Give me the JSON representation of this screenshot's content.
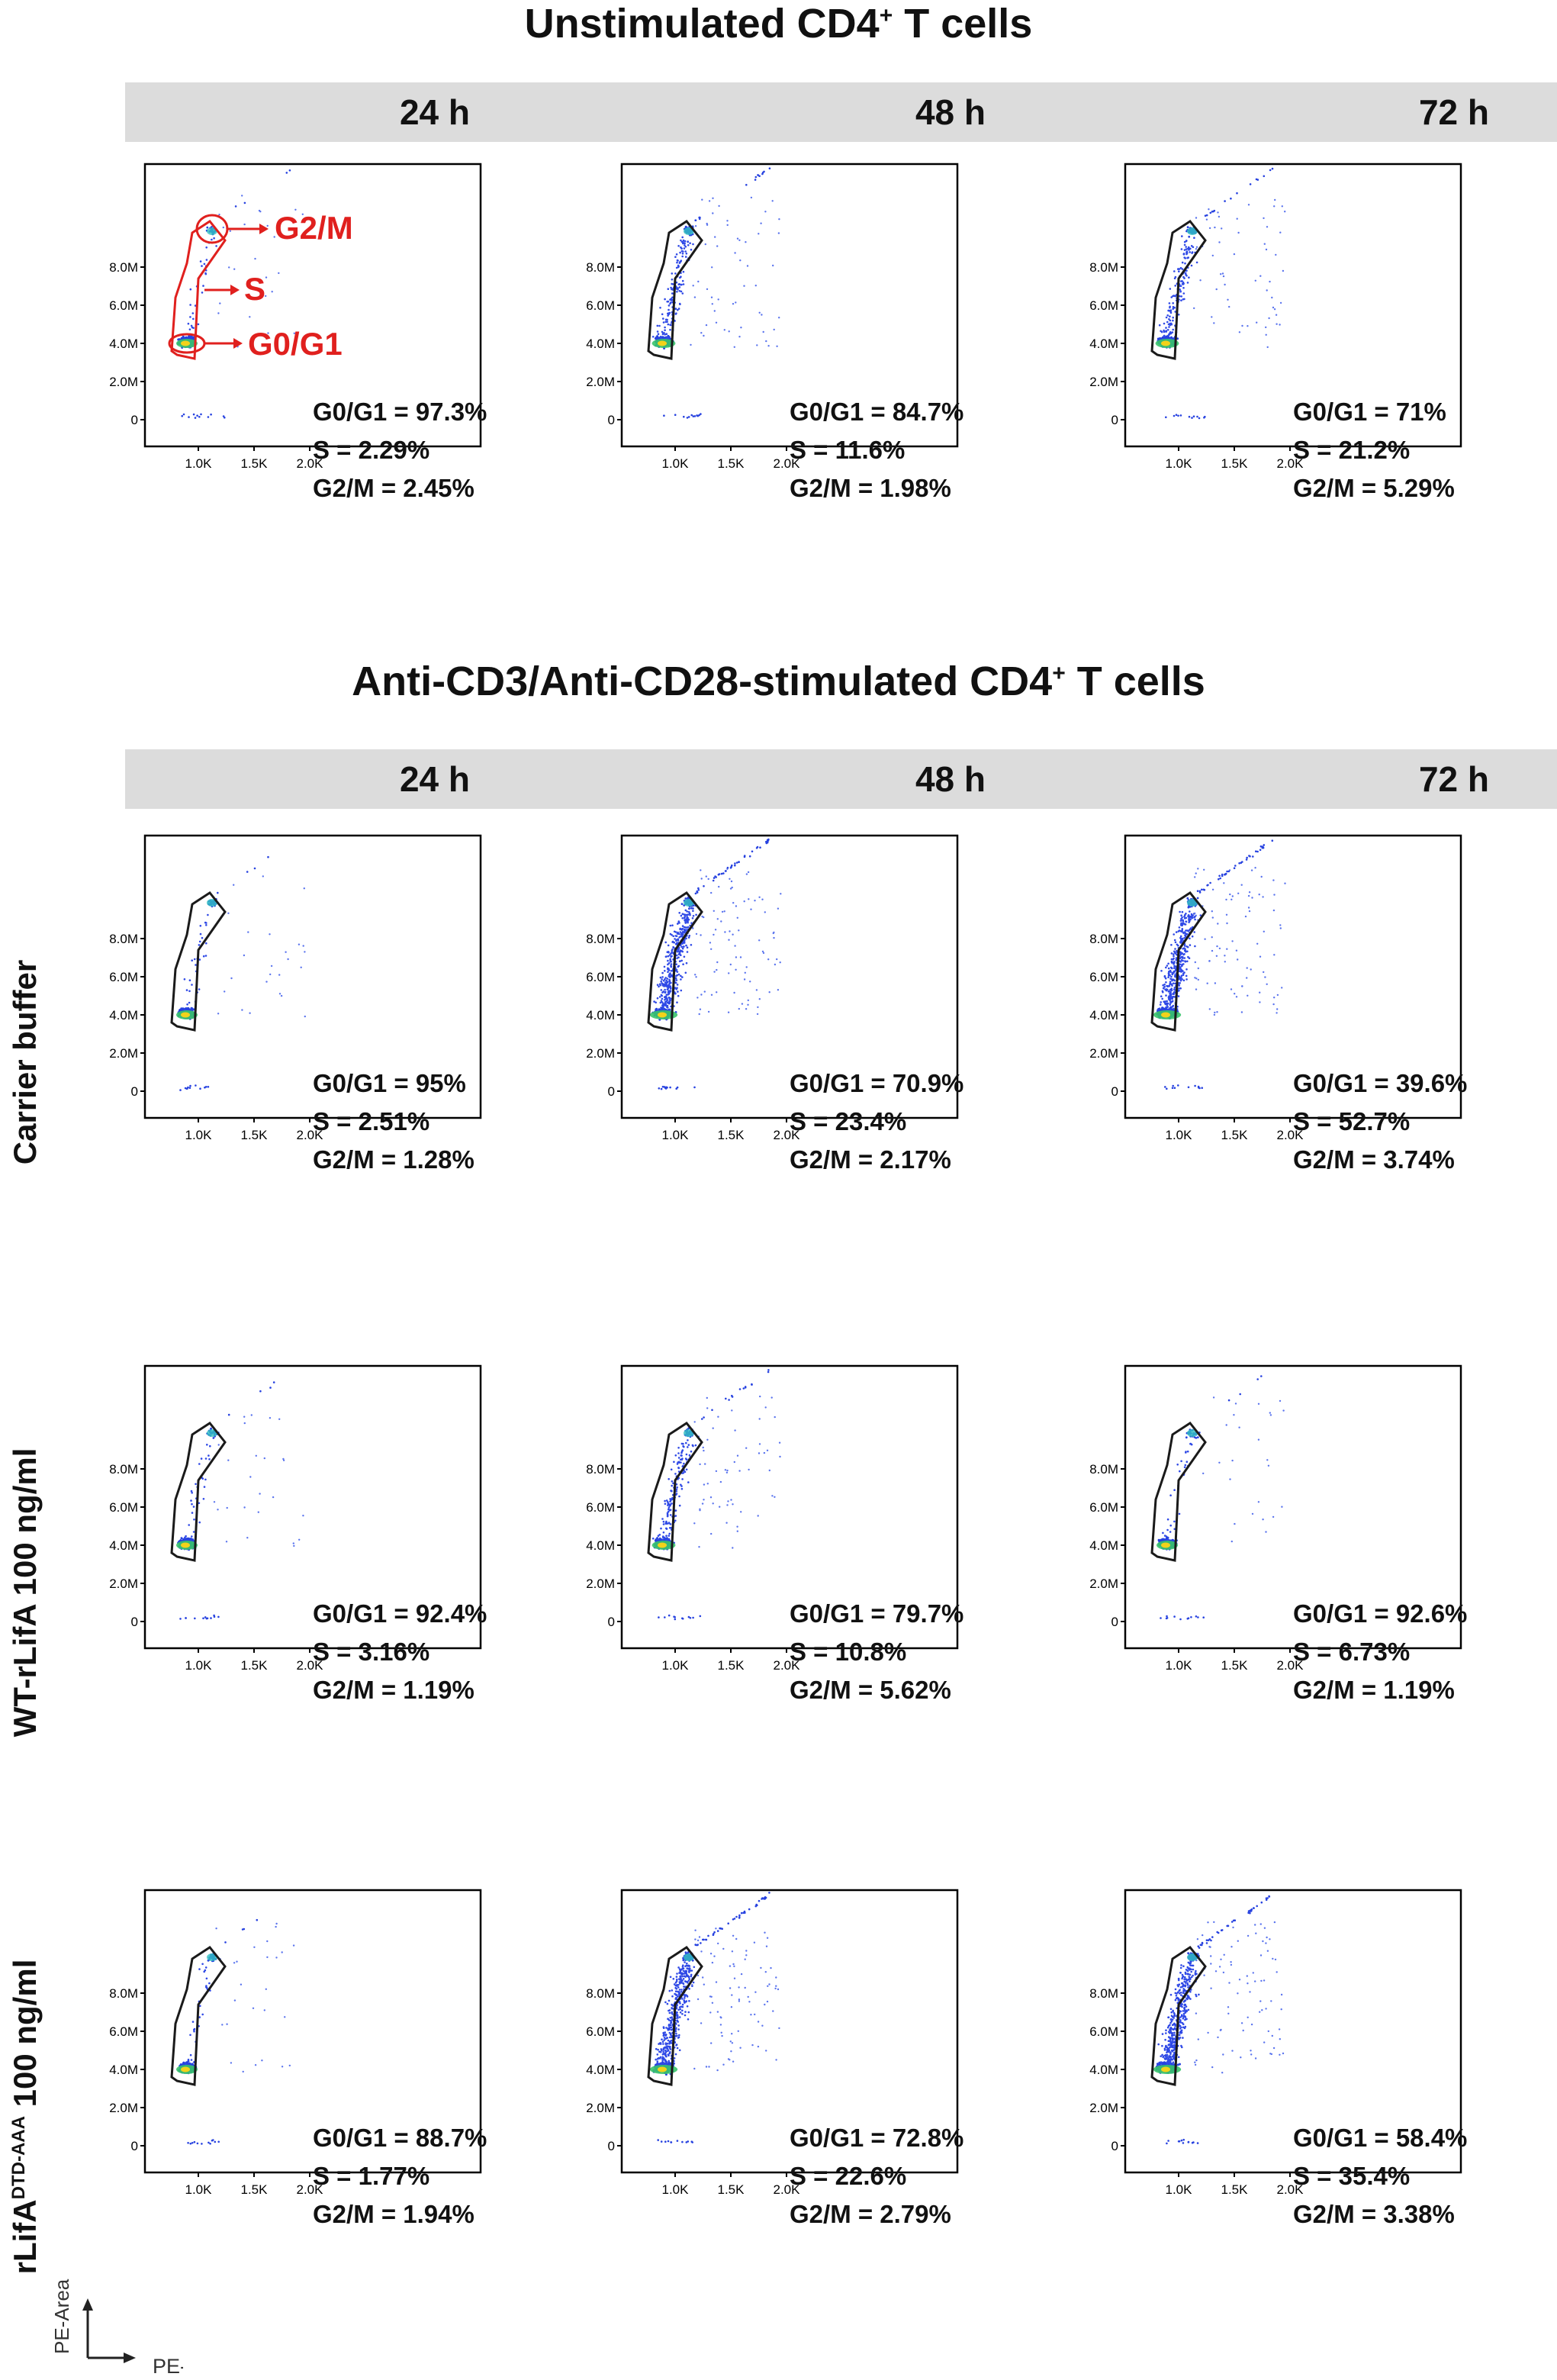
{
  "unstimulated": {
    "title": "Unstimulated CD4",
    "title_sup": "+",
    "title_suffix": " T cells",
    "time_labels": [
      "24 h",
      "48 h",
      "72 h"
    ],
    "annotations": {
      "g2m": "G2/M",
      "s": "S",
      "g0g1": "G0/G1"
    },
    "panels": [
      {
        "time": "24 h",
        "g0g1": "G0/G1 = 97.3%",
        "s": "S = 2.29%",
        "g2m": "G2/M = 2.45%"
      },
      {
        "time": "48 h",
        "g0g1": "G0/G1 = 84.7%",
        "s": "S = 11.6%",
        "g2m": "G2/M = 1.98%"
      },
      {
        "time": "72 h",
        "g0g1": "G0/G1 = 71%",
        "s": "S = 21.2%",
        "g2m": "G2/M = 5.29%"
      }
    ]
  },
  "stimulated": {
    "title": "Anti-CD3/Anti-CD28-stimulated CD4",
    "title_sup": "+",
    "title_suffix": " T cells",
    "time_labels": [
      "24 h",
      "48 h",
      "72 h"
    ],
    "rows": [
      {
        "label": "Carrier buffer",
        "panels": [
          {
            "g0g1": "G0/G1 = 95%",
            "s": "S = 2.51%",
            "g2m": "G2/M = 1.28%"
          },
          {
            "g0g1": "G0/G1 = 70.9%",
            "s": "S = 23.4%",
            "g2m": "G2/M = 2.17%"
          },
          {
            "g0g1": "G0/G1 = 39.6%",
            "s": "S = 52.7%",
            "g2m": "G2/M = 3.74%"
          }
        ]
      },
      {
        "label": "WT-rLifA 100 ng/ml",
        "panels": [
          {
            "g0g1": "G0/G1 = 92.4%",
            "s": "S = 3.16%",
            "g2m": "G2/M = 1.19%"
          },
          {
            "g0g1": "G0/G1 = 79.7%",
            "s": "S = 10.8%",
            "g2m": "G2/M = 5.62%"
          },
          {
            "g0g1": "G0/G1 = 92.6%",
            "s": "S = 6.73%",
            "g2m": "G2/M = 1.19%"
          }
        ]
      },
      {
        "label_main": "rLifA",
        "label_sup": "DTD-AAA",
        "label_suffix": " 100 ng/ml",
        "panels": [
          {
            "g0g1": "G0/G1 = 88.7%",
            "s": "S = 1.77%",
            "g2m": "G2/M = 1.94%"
          },
          {
            "g0g1": "G0/G1 = 72.8%",
            "s": "S = 22.6%",
            "g2m": "G2/M = 2.79%"
          },
          {
            "g0g1": "G0/G1 = 58.4%",
            "s": "S = 35.4%",
            "g2m": "G2/M = 3.38%"
          }
        ]
      }
    ]
  },
  "axes": {
    "x_ticks": [
      "1.0K",
      "1.5K",
      "2.0K"
    ],
    "y_ticks": [
      "0",
      "2.0M",
      "4.0M",
      "6.0M",
      "8.0M"
    ],
    "x_label": "PE-Width",
    "y_label": "PE-Area"
  },
  "colors": {
    "annotation": "#e0201e",
    "dots": "#1f3fd8",
    "gate": "#222222",
    "bar": "#dcdcdc"
  }
}
